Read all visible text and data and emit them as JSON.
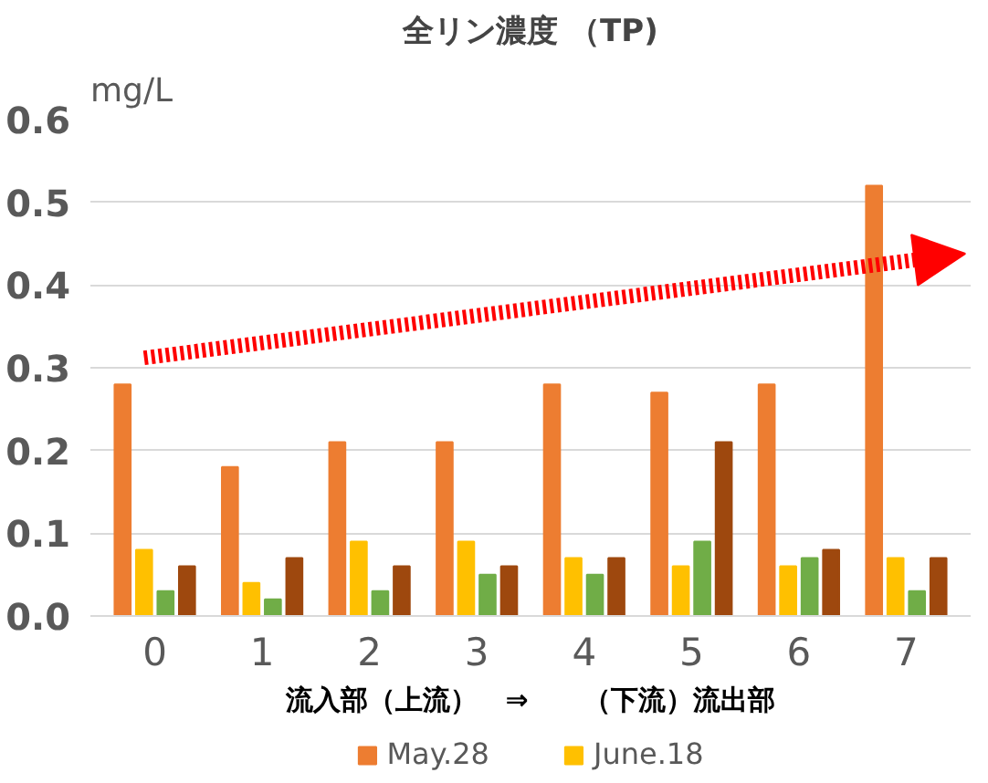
{
  "chart_data": {
    "type": "bar",
    "title": "全リン濃度 （TP)",
    "ylabel": "mg/L",
    "categories": [
      "0",
      "1",
      "2",
      "3",
      "4",
      "5",
      "6",
      "7"
    ],
    "series": [
      {
        "name": "May.28",
        "color": "#ed7d31",
        "values": [
          0.28,
          0.18,
          0.21,
          0.21,
          0.28,
          0.27,
          0.28,
          0.52
        ]
      },
      {
        "name": "June.18",
        "color": "#ffc000",
        "values": [
          0.08,
          0.04,
          0.09,
          0.09,
          0.07,
          0.06,
          0.06,
          0.07
        ]
      },
      {
        "color": "#70ad47",
        "values": [
          0.03,
          0.02,
          0.03,
          0.05,
          0.05,
          0.09,
          0.07,
          0.03
        ]
      },
      {
        "color": "#9e480e",
        "values": [
          0.06,
          0.07,
          0.06,
          0.06,
          0.07,
          0.21,
          0.08,
          0.07
        ]
      }
    ],
    "ylim": [
      0,
      0.6
    ],
    "yticks": [
      {
        "value": 0,
        "label": "0.0"
      },
      {
        "value": 0.1,
        "label": "0.1"
      },
      {
        "value": 0.2,
        "label": "0.2"
      },
      {
        "value": 0.3,
        "label": "0.3"
      },
      {
        "value": 0.4,
        "label": "0.4"
      },
      {
        "value": 0.5,
        "label": "0.5"
      },
      {
        "value": 0.6,
        "label": "0.6"
      }
    ],
    "grid": "y",
    "legend": "bottom",
    "annotations": [
      "流入部（上流）　⇒　　（下流）流出部"
    ]
  }
}
